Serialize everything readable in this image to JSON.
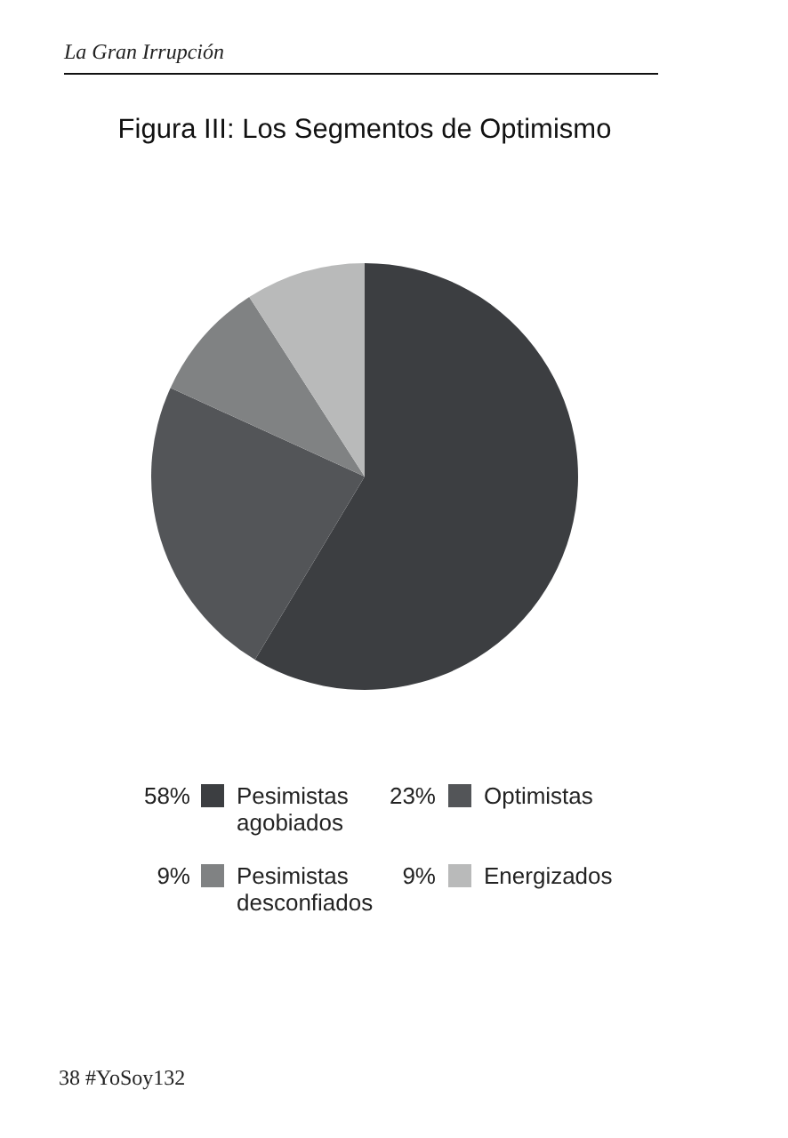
{
  "chart_data": {
    "type": "pie",
    "title": "Figura III: Los Segmentos de Optimismo",
    "categories": [
      "Pesimistas agobiados",
      "Optimistas",
      "Pesimistas desconfiados",
      "Energizados"
    ],
    "values": [
      58,
      23,
      9,
      9
    ],
    "colors": [
      "#3c3e41",
      "#535558",
      "#808283",
      "#b9baba"
    ],
    "value_labels": [
      "58%",
      "23%",
      "9%",
      "9%"
    ],
    "legend": "bottom",
    "annotations": [
      "La Gran Irrupción",
      "38 #YoSoy132"
    ]
  }
}
